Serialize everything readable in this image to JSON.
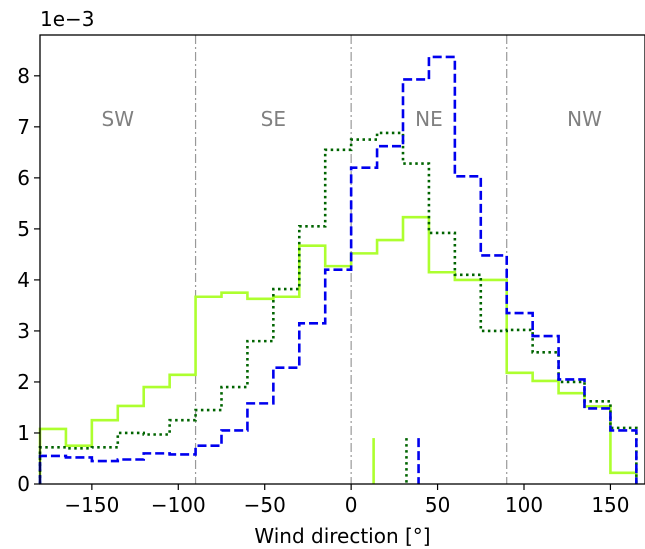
{
  "chart_data": {
    "type": "line",
    "subtype": "step-histogram",
    "xlabel": "Wind direction [°]",
    "ylabel": "",
    "y_offset_text": "1e−3",
    "xlim": [
      -180,
      170
    ],
    "ylim": [
      0,
      8.8
    ],
    "xticks": [
      -150,
      -100,
      -50,
      0,
      50,
      100,
      150
    ],
    "xtick_labels": [
      "−150",
      "−100",
      "−50",
      "0",
      "50",
      "100",
      "150"
    ],
    "yticks": [
      0,
      1,
      2,
      3,
      4,
      5,
      6,
      7,
      8
    ],
    "ytick_labels": [
      "0",
      "1",
      "2",
      "3",
      "4",
      "5",
      "6",
      "7",
      "8"
    ],
    "grid": false,
    "region_lines": [
      -90,
      0,
      90
    ],
    "regions": [
      {
        "label": "SW",
        "x": -135
      },
      {
        "label": "SE",
        "x": -45
      },
      {
        "label": "NE",
        "x": 45
      },
      {
        "label": "NW",
        "x": 135
      }
    ],
    "bin_edges": [
      -180,
      -165,
      -150,
      -135,
      -120,
      -105,
      -90,
      -75,
      -60,
      -45,
      -30,
      -15,
      0,
      15,
      30,
      45,
      60,
      75,
      90,
      105,
      120,
      135,
      150,
      165
    ],
    "series": [
      {
        "color": "#adff2f",
        "linestyle": "solid",
        "values": [
          1.08,
          0.75,
          1.25,
          1.53,
          1.9,
          2.14,
          3.67,
          3.75,
          3.63,
          3.67,
          4.67,
          4.27,
          4.52,
          4.78,
          5.23,
          4.15,
          4.0,
          4.0,
          2.18,
          2.02,
          1.78,
          1.52,
          0.22
        ],
        "marker_x": 13
      },
      {
        "color": "#006400",
        "linestyle": "dotted",
        "values": [
          0.72,
          0.7,
          0.72,
          1.0,
          0.97,
          1.25,
          1.45,
          1.9,
          2.8,
          3.82,
          5.05,
          6.55,
          6.75,
          6.88,
          6.28,
          4.92,
          4.1,
          3.0,
          3.02,
          2.58,
          2.0,
          1.62,
          1.1
        ],
        "marker_x": 32
      },
      {
        "color": "#0000ee",
        "linestyle": "dashed",
        "values": [
          0.55,
          0.52,
          0.45,
          0.48,
          0.6,
          0.58,
          0.75,
          1.05,
          1.58,
          2.28,
          3.15,
          4.2,
          6.2,
          6.62,
          7.93,
          8.37,
          6.03,
          4.48,
          3.35,
          2.9,
          2.05,
          1.48,
          1.05
        ],
        "marker_x": 39
      }
    ]
  }
}
